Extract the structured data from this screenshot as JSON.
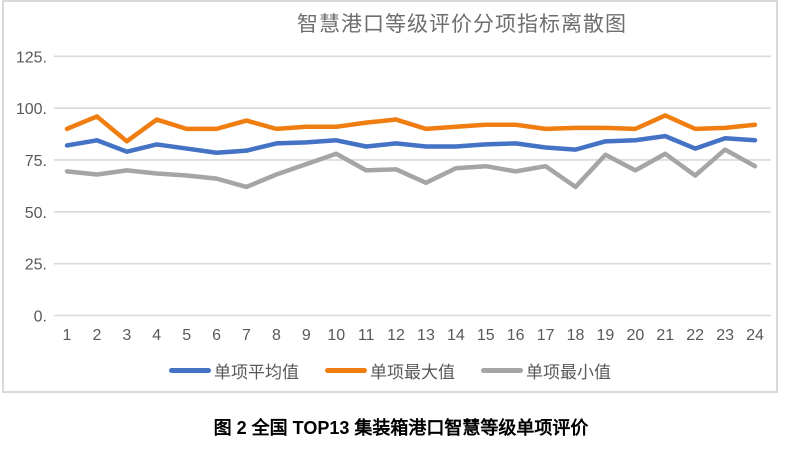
{
  "figure_caption": "图 2 全国 TOP13 集装箱港口智慧等级单项评价",
  "colors": {
    "grid": "#d9d9d9",
    "axis_text": "#595959",
    "title_text": "#6e6e6e",
    "series_average": "#4472C4",
    "series_max": "#F07D10",
    "series_min": "#A5A5A5"
  },
  "chart_data": {
    "type": "line",
    "title": "智慧港口等级评价分项指标离散图",
    "xlabel": "",
    "ylabel": "",
    "x": [
      1,
      2,
      3,
      4,
      5,
      6,
      7,
      8,
      9,
      10,
      11,
      12,
      13,
      14,
      15,
      16,
      17,
      18,
      19,
      20,
      21,
      22,
      23,
      24
    ],
    "series": [
      {
        "name": "单项平均值",
        "color": "#4472C4",
        "values": [
          82,
          84.5,
          79,
          82.5,
          80.5,
          78.5,
          79.5,
          83,
          83.5,
          84.5,
          81.5,
          83,
          81.5,
          81.5,
          82.5,
          83,
          81,
          80,
          84,
          84.5,
          86.5,
          80.5,
          85.5,
          84.5
        ]
      },
      {
        "name": "单项最大值",
        "color": "#F07D10",
        "values": [
          90,
          96,
          84,
          94.5,
          90,
          90,
          94,
          90,
          91,
          91,
          93,
          94.5,
          90,
          91,
          92,
          92,
          90,
          90.5,
          90.5,
          90,
          96.5,
          90,
          90.5,
          92
        ]
      },
      {
        "name": "单项最小值",
        "color": "#A5A5A5",
        "values": [
          69.5,
          68,
          70,
          68.5,
          67.5,
          66,
          62,
          68,
          73,
          78,
          70,
          70.5,
          64,
          71,
          72,
          69.5,
          72,
          62,
          77.5,
          70,
          78,
          67.5,
          80,
          72
        ]
      }
    ],
    "ylim": [
      0,
      125
    ],
    "yticks": [
      0,
      25,
      50,
      75,
      100,
      125
    ],
    "ytick_labels": [
      "0.",
      "25.",
      "50.",
      "75.",
      "100.",
      "125."
    ],
    "grid": true,
    "legend_position": "bottom"
  }
}
